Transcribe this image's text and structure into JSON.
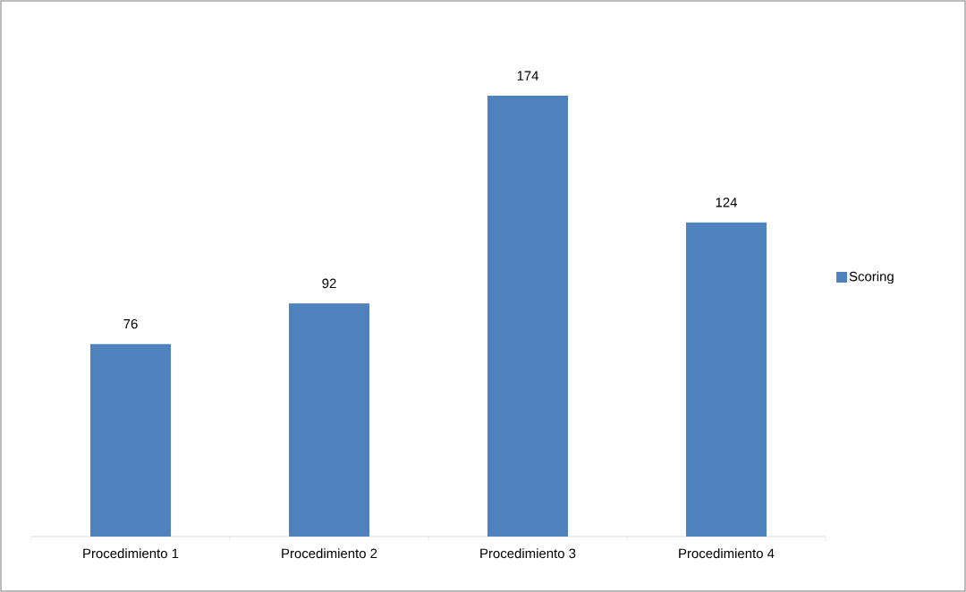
{
  "chart_data": {
    "type": "bar",
    "categories": [
      "Procedimiento 1",
      "Procedimiento 2",
      "Procedimiento 3",
      "Procedimiento 4"
    ],
    "series": [
      {
        "name": "Scoring",
        "color": "#4f81bd",
        "values": [
          76,
          92,
          174,
          124
        ]
      }
    ],
    "data_labels": true,
    "legend": "right"
  }
}
